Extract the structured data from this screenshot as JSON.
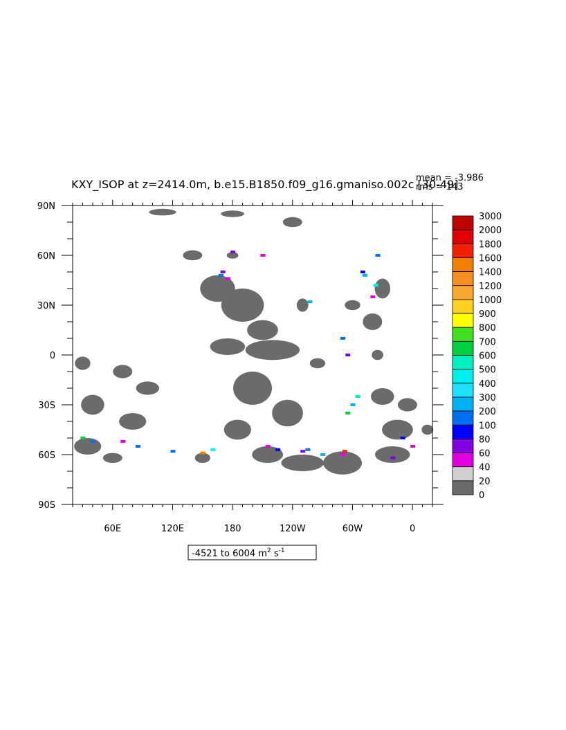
{
  "title": "KXY_ISOP at z=2414.0m, b.e15.B1850.f09_g16.gmaniso.002c [30-49]",
  "stats": {
    "mean": "mean = -3.986",
    "rms": "rms = 143"
  },
  "range_label": {
    "text": "-4521 to 6004 m",
    "unit_sup": "2",
    "unit_s": " s",
    "unit_s_sup": "-1"
  },
  "map": {
    "lat_labels": [
      "90N",
      "60N",
      "30N",
      "0",
      "30S",
      "60S",
      "90S"
    ],
    "lon_labels": [
      "60E",
      "120E",
      "180",
      "120W",
      "60W",
      "0"
    ],
    "lon_range": [
      20,
      380
    ],
    "lat_range": [
      -90,
      90
    ],
    "land_color": "#ffffff",
    "ocean_zero_color": "#6b6b6b"
  },
  "colorbar": {
    "levels": [
      "3000",
      "2000",
      "1800",
      "1600",
      "1400",
      "1200",
      "1000",
      "900",
      "800",
      "700",
      "600",
      "500",
      "400",
      "300",
      "200",
      "100",
      "80",
      "60",
      "40",
      "20",
      "0"
    ],
    "colors": [
      "#c00000",
      "#e00000",
      "#f02000",
      "#f08000",
      "#f59020",
      "#f8a830",
      "#ffd020",
      "#ffff00",
      "#40e020",
      "#00d040",
      "#00f0c0",
      "#00f0f0",
      "#20e0ff",
      "#00b0f0",
      "#0070f0",
      "#0000ff",
      "#8000e0",
      "#e000e0",
      "#d0d0d0",
      "#6b6b6b"
    ]
  }
}
